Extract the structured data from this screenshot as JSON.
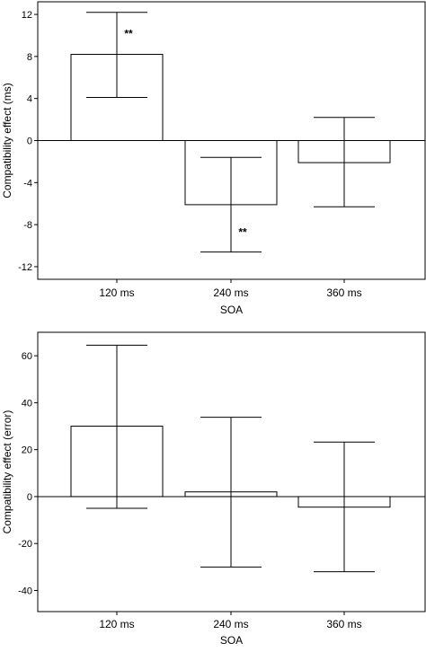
{
  "chart_data": [
    {
      "type": "bar",
      "categories": [
        "120 ms",
        "240 ms",
        "360 ms"
      ],
      "values": [
        8.2,
        -6.1,
        -2.1
      ],
      "error_low": [
        4.1,
        -10.6,
        -6.3
      ],
      "error_high": [
        12.2,
        -1.6,
        2.2
      ],
      "annotations": [
        {
          "category": "120 ms",
          "text": "**"
        },
        {
          "category": "240 ms",
          "text": "**"
        }
      ],
      "xlabel": "SOA",
      "ylabel": "Compatibility effect (ms)",
      "ylim": [
        -13.2,
        13.2
      ],
      "yticks": [
        -12,
        -8,
        -4,
        0,
        4,
        8,
        12
      ],
      "ytick_labels": [
        "-12",
        "-8",
        "-4",
        "0",
        "4",
        "8",
        "12"
      ],
      "grid": false,
      "zero_line": true
    },
    {
      "type": "bar",
      "categories": [
        "120 ms",
        "240 ms",
        "360 ms"
      ],
      "values": [
        30,
        2,
        -4.5
      ],
      "error_low": [
        -5,
        -30,
        -32
      ],
      "error_high": [
        64.5,
        33.8,
        23.2
      ],
      "annotations": [],
      "xlabel": "SOA",
      "ylabel": "Compatibility effect (error)",
      "ylim": [
        -49,
        70
      ],
      "yticks": [
        -40,
        -20,
        0,
        20,
        40,
        60
      ],
      "ytick_labels": [
        "-40",
        "-20",
        "0",
        "20",
        "40",
        "60"
      ],
      "grid": false,
      "zero_line": true
    }
  ]
}
